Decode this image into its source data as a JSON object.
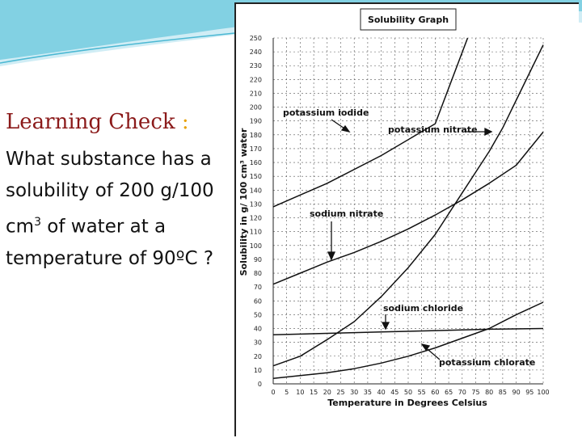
{
  "slide": {
    "title": "Learning Check",
    "colon": ":",
    "question_part1": "What substance has a solubility of  200 g/100 cm",
    "question_sup": "3",
    "question_part2": " of water at a temperature of 90ºC ?"
  },
  "colors": {
    "title": "#8b1a1a",
    "colon": "#e8a000",
    "swoosh": "#6ec9de"
  },
  "chart_data": {
    "type": "line",
    "title": "Solubility Graph",
    "xlabel": "Temperature in Degrees Celsius",
    "ylabel": "Solubility in g/ 100 cm³ water",
    "xlim": [
      0,
      100
    ],
    "ylim": [
      0,
      250
    ],
    "xticks": [
      0,
      5,
      10,
      15,
      20,
      25,
      30,
      35,
      40,
      45,
      50,
      55,
      60,
      65,
      70,
      75,
      80,
      85,
      90,
      95,
      100
    ],
    "yticks": [
      0,
      10,
      20,
      30,
      40,
      50,
      60,
      70,
      80,
      90,
      100,
      110,
      120,
      130,
      140,
      150,
      160,
      170,
      180,
      190,
      200,
      210,
      220,
      230,
      240,
      250
    ],
    "grid": true,
    "series": [
      {
        "name": "potassium iodide",
        "x": [
          0,
          20,
          40,
          60,
          72
        ],
        "y": [
          128,
          145,
          165,
          188,
          250
        ]
      },
      {
        "name": "potassium nitrate",
        "x": [
          0,
          10,
          20,
          30,
          40,
          50,
          60,
          70,
          80,
          85,
          90,
          100
        ],
        "y": [
          13,
          20,
          32,
          45,
          63,
          84,
          108,
          138,
          168,
          185,
          205,
          245
        ]
      },
      {
        "name": "sodium nitrate",
        "x": [
          0,
          10,
          20,
          30,
          40,
          50,
          60,
          70,
          80,
          90,
          100
        ],
        "y": [
          72,
          80,
          88,
          95,
          103,
          112,
          122,
          133,
          145,
          158,
          182
        ]
      },
      {
        "name": "sodium chloride",
        "x": [
          0,
          20,
          40,
          60,
          80,
          100
        ],
        "y": [
          35.5,
          36.5,
          37.5,
          38.5,
          39.5,
          40
        ]
      },
      {
        "name": "potassium chlorate",
        "x": [
          0,
          10,
          20,
          30,
          40,
          50,
          60,
          70,
          80,
          90,
          100
        ],
        "y": [
          4,
          6,
          8,
          11,
          15,
          20,
          26,
          33,
          40,
          50,
          59
        ]
      }
    ],
    "annotations": [
      "potassium iodide",
      "potassium nitrate",
      "sodium nitrate",
      "sodium chloride",
      "potassium chlorate"
    ]
  }
}
